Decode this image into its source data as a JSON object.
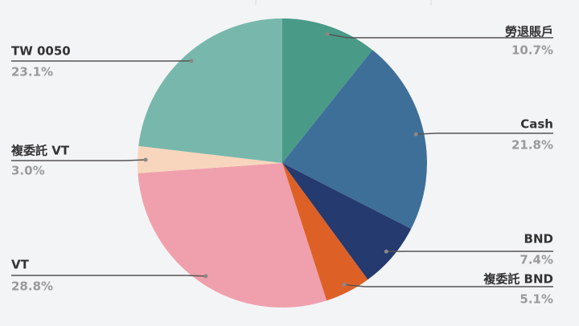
{
  "chart_data": {
    "type": "pie",
    "categories": [
      "勞退賬戶",
      "Cash",
      "BND",
      "複委託 BND",
      "VT",
      "複委託 VT",
      "TW 0050"
    ],
    "values": [
      10.7,
      21.8,
      7.4,
      5.1,
      28.8,
      3.0,
      23.1
    ],
    "value_labels": [
      "10.7%",
      "21.8%",
      "7.4%",
      "5.1%",
      "28.8%",
      "3.0%",
      "23.1%"
    ],
    "colors": [
      "#4a9a88",
      "#3e6f99",
      "#253a6e",
      "#dd6127",
      "#f0a0ad",
      "#f8d6bd",
      "#78b8ac"
    ]
  }
}
